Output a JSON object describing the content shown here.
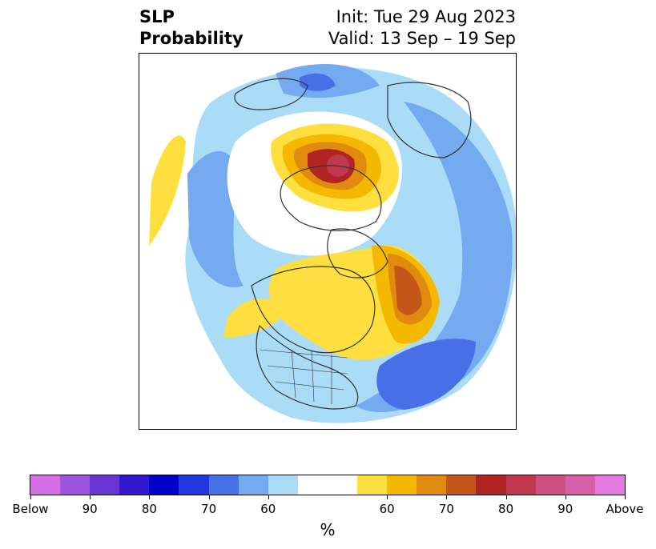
{
  "title": {
    "left_line1": "SLP",
    "left_line2": "Probability",
    "right_line1": "Init: Tue 29 Aug 2023",
    "right_line2": "Valid: 13 Sep – 19 Sep"
  },
  "colorbar": {
    "unit": "%",
    "colors": [
      "#d66fe6",
      "#9c55dc",
      "#6b35d6",
      "#3418d0",
      "#0000c8",
      "#2238dc",
      "#4870e6",
      "#74aaf0",
      "#aadcf8",
      "#ffffff",
      "#ffffff",
      "#ffdf40",
      "#f4b800",
      "#e08a10",
      "#c4561a",
      "#b02424",
      "#c03850",
      "#cc5080",
      "#d860aa",
      "#e47ae0"
    ],
    "ticks": [
      "Below",
      "90",
      "80",
      "70",
      "60",
      "60",
      "70",
      "80",
      "90",
      "Above"
    ]
  },
  "map": {
    "projection": "north-polar-stereographic",
    "description_colors": {
      "below_60": "#aadcf8",
      "below_70": "#74aaf0",
      "below_80": "#4870e6",
      "above_60": "#ffdf40",
      "above_70": "#f4b800",
      "above_80": "#e08a10",
      "above_90": "#b02424"
    }
  }
}
